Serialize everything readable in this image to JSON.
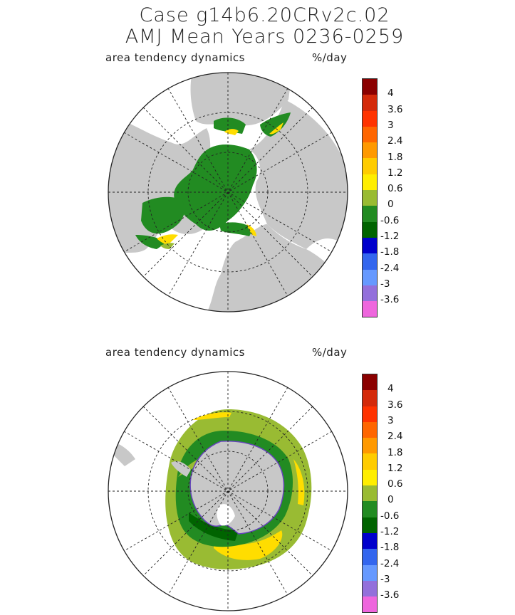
{
  "header": {
    "title_line1": "Case g14b6.20CRv2c.02",
    "title_line2": "AMJ Mean    Years 0236-0259"
  },
  "panels": [
    {
      "variable": "area tendency dynamics",
      "units": "%/day",
      "hemisphere": "north"
    },
    {
      "variable": "area tendency dynamics",
      "units": "%/day",
      "hemisphere": "south"
    }
  ],
  "colorbar": {
    "colors": [
      "#8b0000",
      "#d42a0a",
      "#ff3300",
      "#ff6600",
      "#ff9900",
      "#ffcc00",
      "#ffee00",
      "#99bb33",
      "#228b22",
      "#006400",
      "#0000cc",
      "#3366ee",
      "#6699ff",
      "#9370db",
      "#ee66dd"
    ],
    "tick_labels": [
      "4",
      "3.6",
      "3",
      "2.4",
      "1.8",
      "1.2",
      "0.6",
      "0",
      "-0.6",
      "-1.2",
      "-1.8",
      "-2.4",
      "-3",
      "-3.6"
    ]
  },
  "map_colors": {
    "land": "#c8c8c8",
    "ocean": "#ffffff",
    "ice_negative": "#228b22",
    "ice_slight_positive": "#99bb33",
    "ice_positive": "#ffdd00"
  }
}
